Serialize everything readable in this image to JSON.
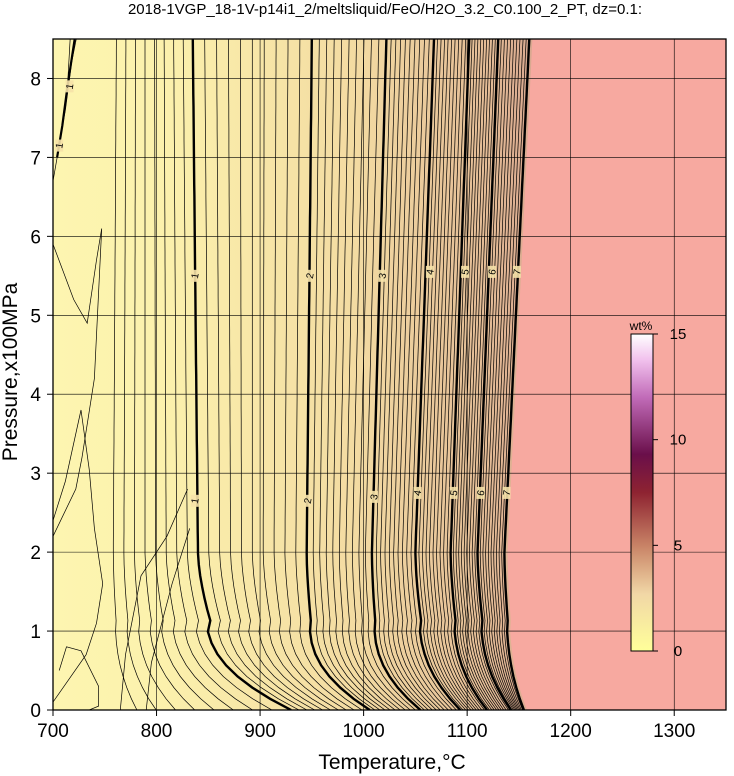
{
  "chart_data": {
    "type": "heatmap",
    "title": "2018-1VGP_18-1V-p14i1_2/meltsliquid/FeO/H2O_3.2_C0.100_2_PT, dz=0.1:",
    "xlabel": "Temperature,°C",
    "ylabel": "Pressure,x100MPa",
    "xlim": [
      700,
      1350
    ],
    "ylim": [
      0,
      8.5
    ],
    "x_ticks": [
      700,
      800,
      900,
      1000,
      1100,
      1200,
      1300
    ],
    "y_ticks": [
      0,
      1,
      2,
      3,
      4,
      5,
      6,
      7,
      8
    ],
    "grid": true,
    "colorbar": {
      "unit": "wt%",
      "ticks": [
        0,
        5,
        10,
        15
      ],
      "range": [
        0,
        15
      ],
      "placement": "right-inside"
    },
    "field_above_range_color": "#f7a9a0",
    "major_contours": [
      {
        "level": 1,
        "T_at_P0": 912,
        "T_at_P1": 855,
        "T_at_P2": 840,
        "T_at_P8_5": 835
      },
      {
        "level": 2,
        "T_at_P0": 1000,
        "T_at_P1": 950,
        "T_at_P2": 945,
        "T_at_P8_5": 950
      },
      {
        "level": 3,
        "T_at_P0": 1050,
        "T_at_P1": 1012,
        "T_at_P2": 1008,
        "T_at_P8_5": 1022
      },
      {
        "level": 4,
        "T_at_P0": 1085,
        "T_at_P1": 1057,
        "T_at_P2": 1050,
        "T_at_P8_5": 1068
      },
      {
        "level": 5,
        "T_at_P0": 1112,
        "T_at_P1": 1090,
        "T_at_P2": 1084,
        "T_at_P8_5": 1102
      },
      {
        "level": 6,
        "T_at_P0": 1135,
        "T_at_P1": 1116,
        "T_at_P2": 1110,
        "T_at_P8_5": 1130
      },
      {
        "level": 7,
        "T_at_P0": 1150,
        "T_at_P1": 1140,
        "T_at_P2": 1136,
        "T_at_P8_5": 1160
      }
    ],
    "contour_labels": [
      {
        "text": "1",
        "T": 837,
        "P": 5.5
      },
      {
        "text": "1",
        "T": 837,
        "P": 2.65
      },
      {
        "text": "2",
        "T": 948,
        "P": 5.5
      },
      {
        "text": "2",
        "T": 946,
        "P": 2.65
      },
      {
        "text": "3",
        "T": 1018,
        "P": 5.5
      },
      {
        "text": "3",
        "T": 1010,
        "P": 2.7
      },
      {
        "text": "4",
        "T": 1064,
        "P": 5.55
      },
      {
        "text": "4",
        "T": 1052,
        "P": 2.75
      },
      {
        "text": "5",
        "T": 1098,
        "P": 5.55
      },
      {
        "text": "5",
        "T": 1087,
        "P": 2.75
      },
      {
        "text": "6",
        "T": 1124,
        "P": 5.55
      },
      {
        "text": "6",
        "T": 1113,
        "P": 2.75
      },
      {
        "text": "7",
        "T": 1148,
        "P": 5.55
      },
      {
        "text": "7",
        "T": 1138,
        "P": 2.75
      },
      {
        "text": "1",
        "T": 716,
        "P": 7.9
      },
      {
        "text": "1",
        "T": 706,
        "P": 7.15
      }
    ]
  }
}
